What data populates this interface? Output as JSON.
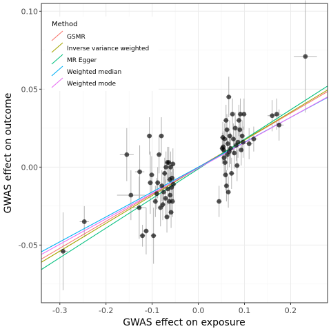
{
  "chart_data": {
    "type": "scatter",
    "xlabel": "GWAS effect on exposure",
    "ylabel": "GWAS effect on outcome",
    "xlim": [
      -0.34,
      0.28
    ],
    "ylim": [
      -0.087,
      0.105
    ],
    "xticks": [
      -0.3,
      -0.2,
      -0.1,
      0.0,
      0.1,
      0.2
    ],
    "xtick_labels": [
      "-0.3",
      "-0.2",
      "-0.1",
      "0.0",
      "0.1",
      "0.2"
    ],
    "yticks": [
      -0.05,
      0.0,
      0.05,
      0.1
    ],
    "ytick_labels": [
      "-0.05",
      "0.00",
      "0.05",
      "0.10"
    ],
    "grid": true,
    "legend": {
      "title": "Method",
      "position": "top-left",
      "entries": [
        "GSMR",
        "Inverse variance weighted",
        "MR Egger",
        "Weighted median",
        "Weighted mode"
      ]
    },
    "lines": [
      {
        "name": "GSMR",
        "color": "#F8766D",
        "x": [
          -0.34,
          0.28
        ],
        "y": [
          -0.059,
          0.0485
        ]
      },
      {
        "name": "Inverse variance weighted",
        "color": "#A3A500",
        "x": [
          -0.34,
          0.28
        ],
        "y": [
          -0.061,
          0.0495
        ]
      },
      {
        "name": "MR Egger",
        "color": "#00BF7D",
        "x": [
          -0.34,
          0.28
        ],
        "y": [
          -0.0657,
          0.052
        ]
      },
      {
        "name": "Weighted median",
        "color": "#00B0F6",
        "x": [
          -0.34,
          0.28
        ],
        "y": [
          -0.0543,
          0.0447
        ]
      },
      {
        "name": "Weighted mode",
        "color": "#E76BF3",
        "x": [
          -0.34,
          0.28
        ],
        "y": [
          -0.056,
          0.045
        ]
      }
    ],
    "points": [
      {
        "x": 0.232,
        "y": 0.071,
        "xe": 0.025,
        "ye": 0.036
      },
      {
        "x": -0.293,
        "y": -0.054,
        "xe": 0.01,
        "ye": 0.025
      },
      {
        "x": -0.247,
        "y": -0.035,
        "xe": 0.01,
        "ye": 0.01
      },
      {
        "x": -0.155,
        "y": 0.008,
        "xe": 0.015,
        "ye": 0.017
      },
      {
        "x": -0.146,
        "y": -0.018,
        "xe": 0.03,
        "ye": 0.016
      },
      {
        "x": -0.128,
        "y": -0.026,
        "xe": 0.015,
        "ye": 0.02
      },
      {
        "x": -0.127,
        "y": -0.003,
        "xe": 0.01,
        "ye": 0.017
      },
      {
        "x": -0.121,
        "y": -0.044,
        "xe": 0.006,
        "ye": 0.007
      },
      {
        "x": -0.113,
        "y": -0.041,
        "xe": 0.006,
        "ye": 0.015
      },
      {
        "x": -0.106,
        "y": 0.02,
        "xe": 0.006,
        "ye": 0.012
      },
      {
        "x": -0.104,
        "y": -0.01,
        "xe": 0.006,
        "ye": 0.02
      },
      {
        "x": -0.101,
        "y": -0.005,
        "xe": 0.006,
        "ye": 0.012
      },
      {
        "x": -0.097,
        "y": -0.044,
        "xe": 0.006,
        "ye": 0.018
      },
      {
        "x": -0.093,
        "y": -0.022,
        "xe": 0.006,
        "ye": 0.01
      },
      {
        "x": -0.09,
        "y": -0.017,
        "xe": 0.006,
        "ye": 0.01
      },
      {
        "x": -0.088,
        "y": -0.01,
        "xe": 0.006,
        "ye": 0.01
      },
      {
        "x": -0.085,
        "y": 0.008,
        "xe": 0.006,
        "ye": 0.012
      },
      {
        "x": -0.082,
        "y": -0.026,
        "xe": 0.006,
        "ye": 0.012
      },
      {
        "x": -0.08,
        "y": 0.02,
        "xe": 0.006,
        "ye": 0.012
      },
      {
        "x": -0.079,
        "y": -0.012,
        "xe": 0.006,
        "ye": 0.01
      },
      {
        "x": -0.077,
        "y": -0.024,
        "xe": 0.006,
        "ye": 0.01
      },
      {
        "x": -0.075,
        "y": -0.016,
        "xe": 0.006,
        "ye": 0.01
      },
      {
        "x": -0.073,
        "y": -0.004,
        "xe": 0.006,
        "ye": 0.01
      },
      {
        "x": -0.071,
        "y": -0.02,
        "xe": 0.006,
        "ye": 0.012
      },
      {
        "x": -0.07,
        "y": 0.0,
        "xe": 0.006,
        "ye": 0.01
      },
      {
        "x": -0.068,
        "y": -0.032,
        "xe": 0.006,
        "ye": 0.01
      },
      {
        "x": -0.067,
        "y": 0.003,
        "xe": 0.006,
        "ye": 0.01
      },
      {
        "x": -0.066,
        "y": -0.014,
        "xe": 0.006,
        "ye": 0.01
      },
      {
        "x": -0.064,
        "y": 0.003,
        "xe": 0.006,
        "ye": 0.01
      },
      {
        "x": -0.063,
        "y": -0.022,
        "xe": 0.006,
        "ye": 0.01
      },
      {
        "x": -0.062,
        "y": -0.008,
        "xe": 0.006,
        "ye": 0.01
      },
      {
        "x": -0.061,
        "y": -0.018,
        "xe": 0.006,
        "ye": 0.01
      },
      {
        "x": -0.06,
        "y": 0.0,
        "xe": 0.006,
        "ye": 0.01
      },
      {
        "x": -0.059,
        "y": -0.029,
        "xe": 0.006,
        "ye": 0.01
      },
      {
        "x": -0.058,
        "y": -0.013,
        "xe": 0.006,
        "ye": 0.01
      },
      {
        "x": -0.057,
        "y": -0.007,
        "xe": 0.006,
        "ye": 0.01
      },
      {
        "x": -0.056,
        "y": -0.022,
        "xe": 0.006,
        "ye": 0.01
      },
      {
        "x": -0.055,
        "y": 0.002,
        "xe": 0.006,
        "ye": 0.01
      },
      {
        "x": -0.054,
        "y": -0.011,
        "xe": 0.006,
        "ye": 0.01
      },
      {
        "x": 0.045,
        "y": -0.022,
        "xe": 0.006,
        "ye": 0.01
      },
      {
        "x": 0.052,
        "y": 0.012,
        "xe": 0.006,
        "ye": 0.01
      },
      {
        "x": 0.053,
        "y": 0.019,
        "xe": 0.006,
        "ye": 0.01
      },
      {
        "x": 0.054,
        "y": 0.013,
        "xe": 0.006,
        "ye": 0.01
      },
      {
        "x": 0.055,
        "y": 0.011,
        "xe": 0.006,
        "ye": 0.01
      },
      {
        "x": 0.056,
        "y": 0.006,
        "xe": 0.006,
        "ye": 0.01
      },
      {
        "x": 0.057,
        "y": 0.018,
        "xe": 0.006,
        "ye": 0.01
      },
      {
        "x": 0.058,
        "y": 0.003,
        "xe": 0.006,
        "ye": 0.01
      },
      {
        "x": 0.059,
        "y": -0.005,
        "xe": 0.006,
        "ye": 0.01
      },
      {
        "x": 0.06,
        "y": 0.03,
        "xe": 0.006,
        "ye": 0.01
      },
      {
        "x": 0.061,
        "y": -0.012,
        "xe": 0.006,
        "ye": 0.01
      },
      {
        "x": 0.062,
        "y": 0.024,
        "xe": 0.006,
        "ye": 0.01
      },
      {
        "x": 0.063,
        "y": 0.008,
        "xe": 0.006,
        "ye": 0.01
      },
      {
        "x": 0.064,
        "y": 0.015,
        "xe": 0.006,
        "ye": 0.01
      },
      {
        "x": 0.065,
        "y": -0.016,
        "xe": 0.006,
        "ye": 0.01
      },
      {
        "x": 0.066,
        "y": 0.045,
        "xe": 0.006,
        "ye": 0.013
      },
      {
        "x": 0.067,
        "y": 0.01,
        "xe": 0.006,
        "ye": 0.01
      },
      {
        "x": 0.068,
        "y": 0.02,
        "xe": 0.006,
        "ye": 0.01
      },
      {
        "x": 0.07,
        "y": 0.012,
        "xe": 0.006,
        "ye": 0.01
      },
      {
        "x": 0.072,
        "y": -0.004,
        "xe": 0.006,
        "ye": 0.01
      },
      {
        "x": 0.074,
        "y": 0.034,
        "xe": 0.006,
        "ye": 0.01
      },
      {
        "x": 0.076,
        "y": 0.018,
        "xe": 0.006,
        "ye": 0.01
      },
      {
        "x": 0.078,
        "y": 0.009,
        "xe": 0.006,
        "ye": 0.01
      },
      {
        "x": 0.08,
        "y": 0.025,
        "xe": 0.006,
        "ye": 0.01
      },
      {
        "x": 0.082,
        "y": 0.014,
        "xe": 0.006,
        "ye": 0.01
      },
      {
        "x": 0.084,
        "y": 0.001,
        "xe": 0.006,
        "ye": 0.01
      },
      {
        "x": 0.086,
        "y": 0.016,
        "xe": 0.006,
        "ye": 0.01
      },
      {
        "x": 0.088,
        "y": 0.03,
        "xe": 0.006,
        "ye": 0.01
      },
      {
        "x": 0.09,
        "y": 0.024,
        "xe": 0.006,
        "ye": 0.01
      },
      {
        "x": 0.091,
        "y": 0.034,
        "xe": 0.006,
        "ye": 0.01
      },
      {
        "x": 0.093,
        "y": 0.011,
        "xe": 0.006,
        "ye": 0.01
      },
      {
        "x": 0.095,
        "y": 0.02,
        "xe": 0.006,
        "ye": 0.01
      },
      {
        "x": 0.097,
        "y": 0.016,
        "xe": 0.006,
        "ye": 0.01
      },
      {
        "x": 0.099,
        "y": 0.034,
        "xe": 0.006,
        "ye": 0.01
      },
      {
        "x": 0.11,
        "y": 0.015,
        "xe": 0.008,
        "ye": 0.01
      },
      {
        "x": 0.12,
        "y": 0.018,
        "xe": 0.008,
        "ye": 0.008
      },
      {
        "x": 0.16,
        "y": 0.033,
        "xe": 0.01,
        "ye": 0.01
      },
      {
        "x": 0.17,
        "y": 0.034,
        "xe": 0.01,
        "ye": 0.01
      },
      {
        "x": 0.175,
        "y": 0.027,
        "xe": 0.01,
        "ye": 0.01
      }
    ]
  }
}
